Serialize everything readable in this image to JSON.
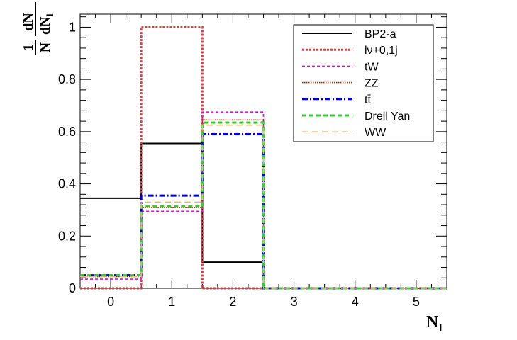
{
  "chart_data": {
    "type": "histogram",
    "x_bin_edges": [
      -0.5,
      0.5,
      1.5,
      2.5,
      3.5,
      4.5,
      5.5
    ],
    "x_tick_labels": [
      "0",
      "1",
      "2",
      "3",
      "4",
      "5"
    ],
    "y_tick_labels": [
      "0",
      "0.2",
      "0.4",
      "0.6",
      "0.8",
      "1"
    ],
    "xlim": [
      -0.5,
      5.5
    ],
    "ylim": [
      0,
      1.05
    ],
    "xlabel": {
      "main": "N",
      "sub": "l"
    },
    "ylabel": {
      "fraction": "1/N",
      "num": "dN",
      "den_main": "dN",
      "den_sub": "l"
    },
    "legend_position": "top-right",
    "series": [
      {
        "name": "BP2-a",
        "color": "#000000",
        "line_style": "solid",
        "values": [
          0.345,
          0.555,
          0.1,
          0.0,
          0.0,
          0.0
        ]
      },
      {
        "name": "lν+0,1j",
        "color": "#cc4444",
        "line_style": "dotted",
        "values": [
          0.0,
          1.0,
          0.0,
          0.0,
          0.0,
          0.0
        ]
      },
      {
        "name": "tW",
        "color": "#ee00ee",
        "line_style": "dashed-fine",
        "values": [
          0.035,
          0.295,
          0.675,
          0.0,
          0.0,
          0.0
        ]
      },
      {
        "name": "ZZ",
        "color": "#993300",
        "line_style": "dotted-fine",
        "values": [
          0.045,
          0.31,
          0.645,
          0.0,
          0.0,
          0.0
        ]
      },
      {
        "name": "tt̄",
        "color": "#0000cc",
        "line_style": "dash-dot",
        "values": [
          0.05,
          0.355,
          0.59,
          0.0,
          0.0,
          0.0
        ]
      },
      {
        "name": "Drell Yan",
        "color": "#33cc33",
        "line_style": "dashed",
        "values": [
          0.05,
          0.315,
          0.635,
          0.0,
          0.0,
          0.0
        ]
      },
      {
        "name": "WW",
        "color": "#e8b48a",
        "line_style": "long-dashed",
        "values": [
          0.045,
          0.33,
          0.625,
          0.0,
          0.0,
          0.0
        ]
      }
    ]
  }
}
